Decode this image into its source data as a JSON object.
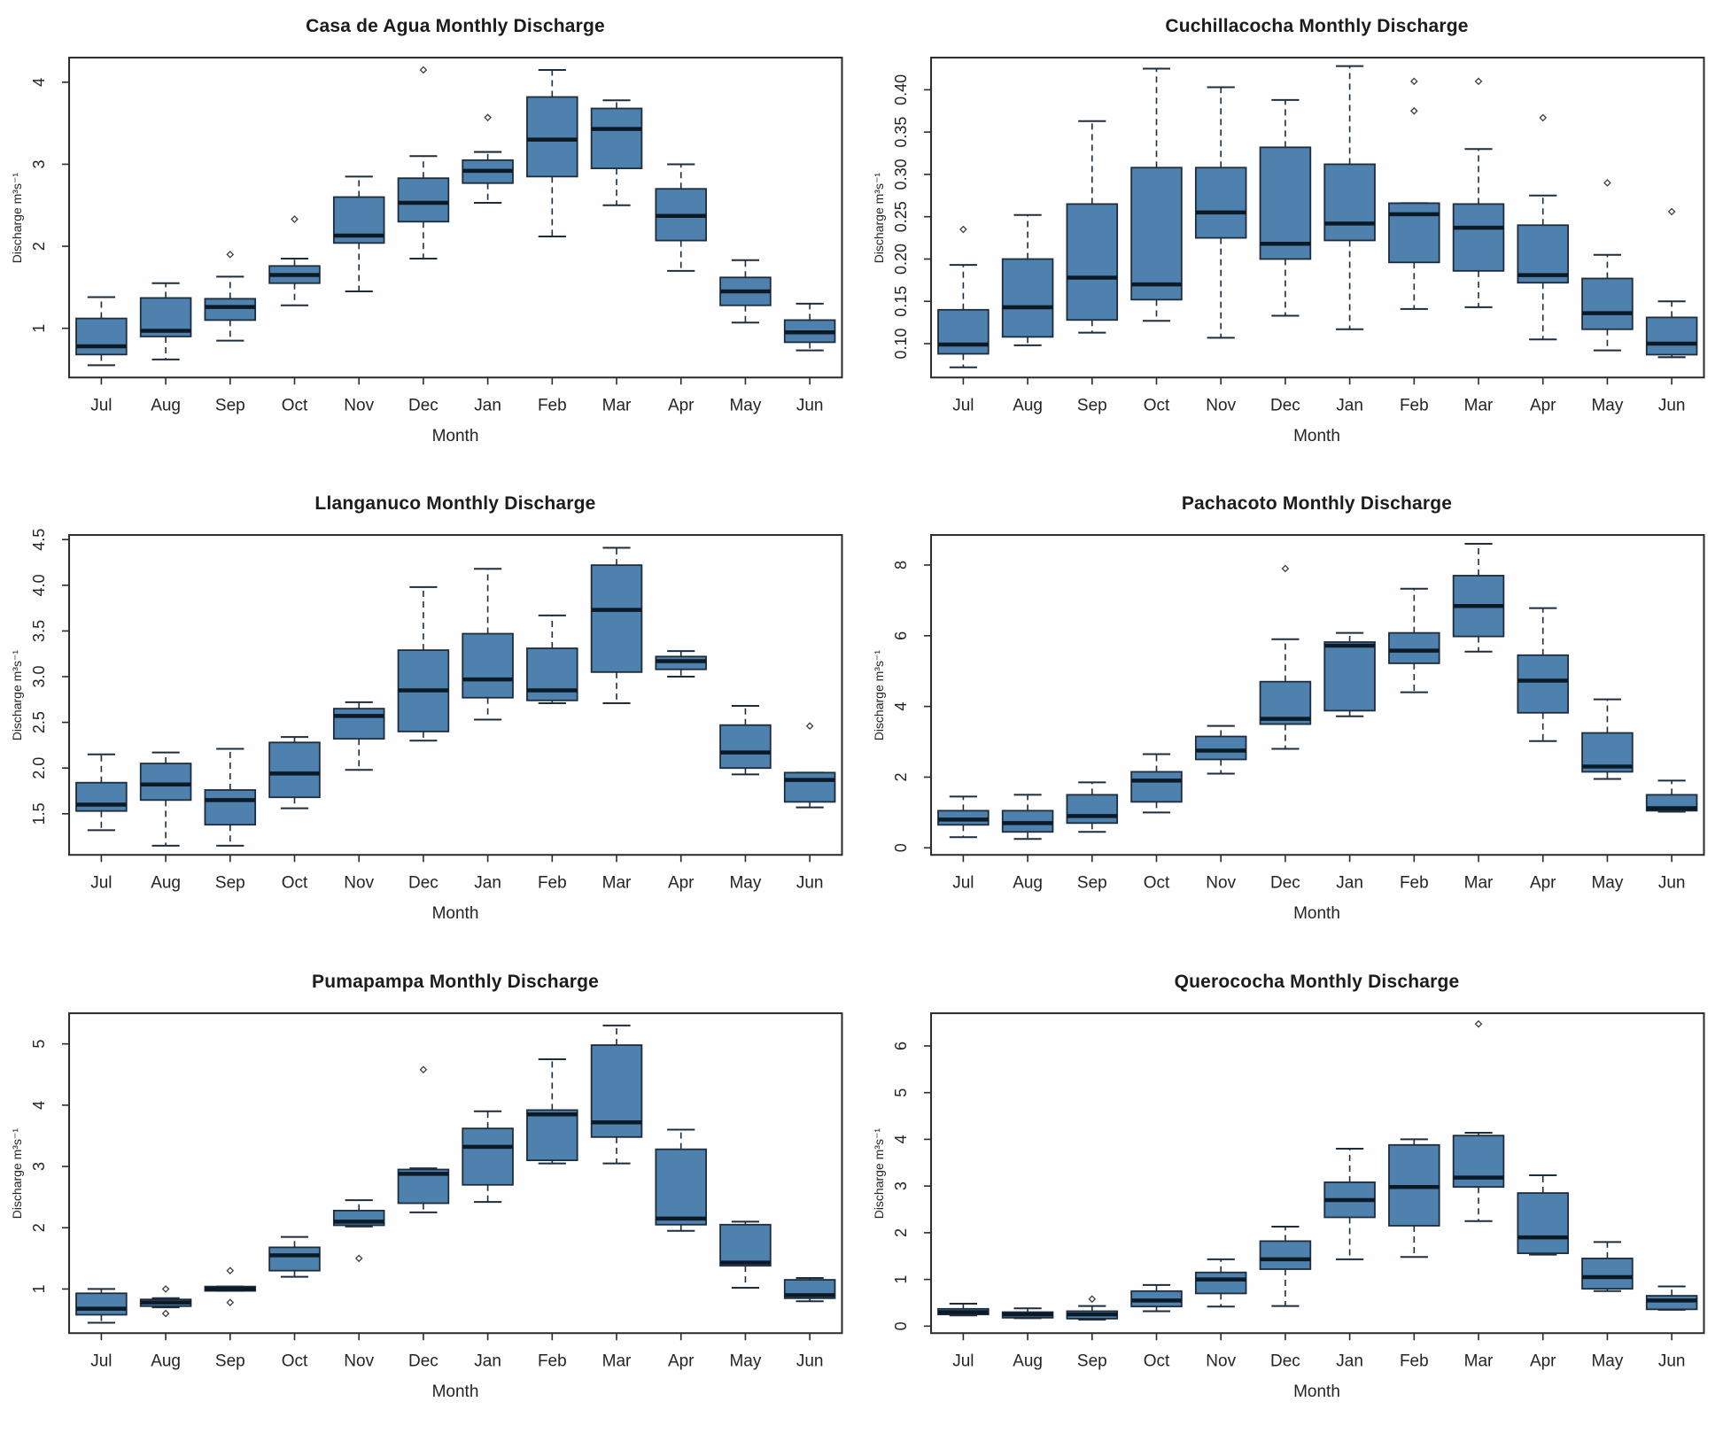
{
  "page": {
    "background": "#fefefe"
  },
  "style": {
    "box_fill": "#4e81ad",
    "box_stroke": "#1e2d3c",
    "median_color": "#0c1a26",
    "whisker_color": "#1e2d3c",
    "outlier_color": "#3d3d3d",
    "frame_color": "#2a2a2a",
    "text_color": "#1f1f1f"
  },
  "chart_data": [
    {
      "type": "box",
      "title": "Casa de Agua Monthly Discharge",
      "xlabel": "Month",
      "ylabel": "Discharge m³s⁻¹",
      "categories": [
        "Jul",
        "Aug",
        "Sep",
        "Oct",
        "Nov",
        "Dec",
        "Jan",
        "Feb",
        "Mar",
        "Apr",
        "May",
        "Jun"
      ],
      "ylim": [
        0.4,
        4.3
      ],
      "yticks": [
        {
          "value": 1,
          "label": "1"
        },
        {
          "value": 2,
          "label": "2"
        },
        {
          "value": 3,
          "label": "3"
        },
        {
          "value": 4,
          "label": "4"
        }
      ],
      "boxes": [
        {
          "low": 0.55,
          "q1": 0.68,
          "median": 0.78,
          "q3": 1.12,
          "high": 1.38,
          "outliers": []
        },
        {
          "low": 0.62,
          "q1": 0.9,
          "median": 0.97,
          "q3": 1.37,
          "high": 1.55,
          "outliers": []
        },
        {
          "low": 0.85,
          "q1": 1.1,
          "median": 1.26,
          "q3": 1.36,
          "high": 1.63,
          "outliers": [
            1.9
          ]
        },
        {
          "low": 1.28,
          "q1": 1.55,
          "median": 1.65,
          "q3": 1.76,
          "high": 1.85,
          "outliers": [
            2.33
          ]
        },
        {
          "low": 1.45,
          "q1": 2.04,
          "median": 2.13,
          "q3": 2.6,
          "high": 2.85,
          "outliers": []
        },
        {
          "low": 1.85,
          "q1": 2.3,
          "median": 2.53,
          "q3": 2.83,
          "high": 3.1,
          "outliers": [
            4.15
          ]
        },
        {
          "low": 2.53,
          "q1": 2.77,
          "median": 2.92,
          "q3": 3.05,
          "high": 3.15,
          "outliers": [
            3.57
          ]
        },
        {
          "low": 2.12,
          "q1": 2.85,
          "median": 3.3,
          "q3": 3.82,
          "high": 4.15,
          "outliers": []
        },
        {
          "low": 2.5,
          "q1": 2.95,
          "median": 3.43,
          "q3": 3.68,
          "high": 3.78,
          "outliers": []
        },
        {
          "low": 1.7,
          "q1": 2.07,
          "median": 2.37,
          "q3": 2.7,
          "high": 3.0,
          "outliers": []
        },
        {
          "low": 1.07,
          "q1": 1.28,
          "median": 1.45,
          "q3": 1.62,
          "high": 1.83,
          "outliers": []
        },
        {
          "low": 0.73,
          "q1": 0.83,
          "median": 0.95,
          "q3": 1.1,
          "high": 1.3,
          "outliers": []
        }
      ]
    },
    {
      "type": "box",
      "title": "Cuchillacocha Monthly Discharge",
      "xlabel": "Month",
      "ylabel": "Discharge m³s⁻¹",
      "categories": [
        "Jul",
        "Aug",
        "Sep",
        "Oct",
        "Nov",
        "Dec",
        "Jan",
        "Feb",
        "Mar",
        "Apr",
        "May",
        "Jun"
      ],
      "ylim": [
        0.06,
        0.438
      ],
      "yticks": [
        {
          "value": 0.1,
          "label": "0.10"
        },
        {
          "value": 0.15,
          "label": "0.15"
        },
        {
          "value": 0.2,
          "label": "0.20"
        },
        {
          "value": 0.25,
          "label": "0.25"
        },
        {
          "value": 0.3,
          "label": "0.30"
        },
        {
          "value": 0.35,
          "label": "0.35"
        },
        {
          "value": 0.4,
          "label": "0.40"
        }
      ],
      "boxes": [
        {
          "low": 0.072,
          "q1": 0.088,
          "median": 0.099,
          "q3": 0.14,
          "high": 0.193,
          "outliers": [
            0.235
          ]
        },
        {
          "low": 0.098,
          "q1": 0.108,
          "median": 0.143,
          "q3": 0.2,
          "high": 0.252,
          "outliers": []
        },
        {
          "low": 0.113,
          "q1": 0.128,
          "median": 0.178,
          "q3": 0.265,
          "high": 0.363,
          "outliers": []
        },
        {
          "low": 0.127,
          "q1": 0.152,
          "median": 0.17,
          "q3": 0.308,
          "high": 0.425,
          "outliers": []
        },
        {
          "low": 0.107,
          "q1": 0.225,
          "median": 0.255,
          "q3": 0.308,
          "high": 0.403,
          "outliers": []
        },
        {
          "low": 0.133,
          "q1": 0.2,
          "median": 0.218,
          "q3": 0.332,
          "high": 0.388,
          "outliers": []
        },
        {
          "low": 0.117,
          "q1": 0.222,
          "median": 0.242,
          "q3": 0.312,
          "high": 0.428,
          "outliers": []
        },
        {
          "low": 0.141,
          "q1": 0.196,
          "median": 0.253,
          "q3": 0.266,
          "high": 0.266,
          "outliers": [
            0.375,
            0.41
          ]
        },
        {
          "low": 0.143,
          "q1": 0.186,
          "median": 0.237,
          "q3": 0.265,
          "high": 0.33,
          "outliers": [
            0.41
          ]
        },
        {
          "low": 0.105,
          "q1": 0.172,
          "median": 0.181,
          "q3": 0.24,
          "high": 0.275,
          "outliers": [
            0.367
          ]
        },
        {
          "low": 0.092,
          "q1": 0.117,
          "median": 0.136,
          "q3": 0.177,
          "high": 0.205,
          "outliers": [
            0.29
          ]
        },
        {
          "low": 0.084,
          "q1": 0.087,
          "median": 0.1,
          "q3": 0.131,
          "high": 0.15,
          "outliers": [
            0.256
          ]
        }
      ]
    },
    {
      "type": "box",
      "title": "Llanganuco Monthly Discharge",
      "xlabel": "Month",
      "ylabel": "Discharge m³s⁻¹",
      "categories": [
        "Jul",
        "Aug",
        "Sep",
        "Oct",
        "Nov",
        "Dec",
        "Jan",
        "Feb",
        "Mar",
        "Apr",
        "May",
        "Jun"
      ],
      "ylim": [
        1.05,
        4.55
      ],
      "yticks": [
        {
          "value": 1.5,
          "label": "1.5"
        },
        {
          "value": 2.0,
          "label": "2.0"
        },
        {
          "value": 2.5,
          "label": "2.5"
        },
        {
          "value": 3.0,
          "label": "3.0"
        },
        {
          "value": 3.5,
          "label": "3.5"
        },
        {
          "value": 4.0,
          "label": "4.0"
        },
        {
          "value": 4.5,
          "label": "4.5"
        }
      ],
      "boxes": [
        {
          "low": 1.32,
          "q1": 1.53,
          "median": 1.6,
          "q3": 1.84,
          "high": 2.15,
          "outliers": []
        },
        {
          "low": 1.15,
          "q1": 1.65,
          "median": 1.82,
          "q3": 2.05,
          "high": 2.17,
          "outliers": []
        },
        {
          "low": 1.15,
          "q1": 1.38,
          "median": 1.65,
          "q3": 1.76,
          "high": 2.21,
          "outliers": []
        },
        {
          "low": 1.56,
          "q1": 1.68,
          "median": 1.94,
          "q3": 2.28,
          "high": 2.34,
          "outliers": []
        },
        {
          "low": 1.98,
          "q1": 2.32,
          "median": 2.57,
          "q3": 2.65,
          "high": 2.72,
          "outliers": []
        },
        {
          "low": 2.3,
          "q1": 2.4,
          "median": 2.85,
          "q3": 3.29,
          "high": 3.98,
          "outliers": []
        },
        {
          "low": 2.53,
          "q1": 2.77,
          "median": 2.97,
          "q3": 3.47,
          "high": 4.18,
          "outliers": []
        },
        {
          "low": 2.71,
          "q1": 2.74,
          "median": 2.85,
          "q3": 3.31,
          "high": 3.67,
          "outliers": []
        },
        {
          "low": 2.71,
          "q1": 3.05,
          "median": 3.73,
          "q3": 4.22,
          "high": 4.41,
          "outliers": []
        },
        {
          "low": 3.0,
          "q1": 3.08,
          "median": 3.17,
          "q3": 3.22,
          "high": 3.28,
          "outliers": []
        },
        {
          "low": 1.93,
          "q1": 2.0,
          "median": 2.17,
          "q3": 2.47,
          "high": 2.68,
          "outliers": []
        },
        {
          "low": 1.57,
          "q1": 1.63,
          "median": 1.87,
          "q3": 1.95,
          "high": 1.95,
          "outliers": [
            2.46
          ]
        }
      ]
    },
    {
      "type": "box",
      "title": "Pachacoto Monthly Discharge",
      "xlabel": "Month",
      "ylabel": "Discharge m³s⁻¹",
      "categories": [
        "Jul",
        "Aug",
        "Sep",
        "Oct",
        "Nov",
        "Dec",
        "Jan",
        "Feb",
        "Mar",
        "Apr",
        "May",
        "Jun"
      ],
      "ylim": [
        -0.2,
        8.85
      ],
      "yticks": [
        {
          "value": 0,
          "label": "0"
        },
        {
          "value": 2,
          "label": "2"
        },
        {
          "value": 4,
          "label": "4"
        },
        {
          "value": 6,
          "label": "6"
        },
        {
          "value": 8,
          "label": "8"
        }
      ],
      "boxes": [
        {
          "low": 0.3,
          "q1": 0.65,
          "median": 0.8,
          "q3": 1.05,
          "high": 1.45,
          "outliers": []
        },
        {
          "low": 0.25,
          "q1": 0.45,
          "median": 0.7,
          "q3": 1.05,
          "high": 1.5,
          "outliers": []
        },
        {
          "low": 0.45,
          "q1": 0.7,
          "median": 0.9,
          "q3": 1.5,
          "high": 1.85,
          "outliers": []
        },
        {
          "low": 1.0,
          "q1": 1.3,
          "median": 1.9,
          "q3": 2.15,
          "high": 2.65,
          "outliers": []
        },
        {
          "low": 2.1,
          "q1": 2.5,
          "median": 2.75,
          "q3": 3.15,
          "high": 3.45,
          "outliers": []
        },
        {
          "low": 2.8,
          "q1": 3.5,
          "median": 3.65,
          "q3": 4.7,
          "high": 5.9,
          "outliers": [
            7.9
          ]
        },
        {
          "low": 3.72,
          "q1": 3.88,
          "median": 5.72,
          "q3": 5.82,
          "high": 6.08,
          "outliers": []
        },
        {
          "low": 4.4,
          "q1": 5.22,
          "median": 5.58,
          "q3": 6.08,
          "high": 7.33,
          "outliers": []
        },
        {
          "low": 5.55,
          "q1": 5.98,
          "median": 6.84,
          "q3": 7.7,
          "high": 8.6,
          "outliers": []
        },
        {
          "low": 3.02,
          "q1": 3.82,
          "median": 4.73,
          "q3": 5.45,
          "high": 6.78,
          "outliers": []
        },
        {
          "low": 1.95,
          "q1": 2.15,
          "median": 2.3,
          "q3": 3.25,
          "high": 4.2,
          "outliers": []
        },
        {
          "low": 1.02,
          "q1": 1.05,
          "median": 1.12,
          "q3": 1.5,
          "high": 1.9,
          "outliers": []
        }
      ]
    },
    {
      "type": "box",
      "title": "Pumapampa Monthly Discharge",
      "xlabel": "Month",
      "ylabel": "Discharge m³s⁻¹",
      "categories": [
        "Jul",
        "Aug",
        "Sep",
        "Oct",
        "Nov",
        "Dec",
        "Jan",
        "Feb",
        "Mar",
        "Apr",
        "May",
        "Jun"
      ],
      "ylim": [
        0.28,
        5.5
      ],
      "yticks": [
        {
          "value": 1,
          "label": "1"
        },
        {
          "value": 2,
          "label": "2"
        },
        {
          "value": 3,
          "label": "3"
        },
        {
          "value": 4,
          "label": "4"
        },
        {
          "value": 5,
          "label": "5"
        }
      ],
      "boxes": [
        {
          "low": 0.45,
          "q1": 0.58,
          "median": 0.68,
          "q3": 0.93,
          "high": 1.0,
          "outliers": []
        },
        {
          "low": 0.7,
          "q1": 0.72,
          "median": 0.78,
          "q3": 0.83,
          "high": 0.85,
          "outliers": [
            1.0,
            0.6
          ]
        },
        {
          "low": 0.97,
          "q1": 0.97,
          "median": 1.0,
          "q3": 1.04,
          "high": 1.04,
          "outliers": [
            1.3,
            0.78
          ]
        },
        {
          "low": 1.2,
          "q1": 1.3,
          "median": 1.55,
          "q3": 1.68,
          "high": 1.85,
          "outliers": []
        },
        {
          "low": 2.02,
          "q1": 2.04,
          "median": 2.1,
          "q3": 2.28,
          "high": 2.45,
          "outliers": [
            1.5
          ]
        },
        {
          "low": 2.25,
          "q1": 2.4,
          "median": 2.88,
          "q3": 2.95,
          "high": 2.97,
          "outliers": [
            4.58
          ]
        },
        {
          "low": 2.42,
          "q1": 2.7,
          "median": 3.32,
          "q3": 3.62,
          "high": 3.9,
          "outliers": []
        },
        {
          "low": 3.05,
          "q1": 3.1,
          "median": 3.85,
          "q3": 3.92,
          "high": 4.75,
          "outliers": []
        },
        {
          "low": 3.05,
          "q1": 3.48,
          "median": 3.72,
          "q3": 4.98,
          "high": 5.3,
          "outliers": []
        },
        {
          "low": 1.95,
          "q1": 2.05,
          "median": 2.15,
          "q3": 3.28,
          "high": 3.6,
          "outliers": []
        },
        {
          "low": 1.02,
          "q1": 1.38,
          "median": 1.43,
          "q3": 2.05,
          "high": 2.1,
          "outliers": []
        },
        {
          "low": 0.8,
          "q1": 0.85,
          "median": 0.9,
          "q3": 1.15,
          "high": 1.18,
          "outliers": []
        }
      ]
    },
    {
      "type": "box",
      "title": "Querococha Monthly Discharge",
      "xlabel": "Month",
      "ylabel": "Discharge m³s⁻¹",
      "categories": [
        "Jul",
        "Aug",
        "Sep",
        "Oct",
        "Nov",
        "Dec",
        "Jan",
        "Feb",
        "Mar",
        "Apr",
        "May",
        "Jun"
      ],
      "ylim": [
        -0.15,
        6.7
      ],
      "yticks": [
        {
          "value": 0,
          "label": "0"
        },
        {
          "value": 1,
          "label": "1"
        },
        {
          "value": 2,
          "label": "2"
        },
        {
          "value": 3,
          "label": "3"
        },
        {
          "value": 4,
          "label": "4"
        },
        {
          "value": 5,
          "label": "5"
        },
        {
          "value": 6,
          "label": "6"
        }
      ],
      "boxes": [
        {
          "low": 0.23,
          "q1": 0.25,
          "median": 0.3,
          "q3": 0.37,
          "high": 0.48,
          "outliers": []
        },
        {
          "low": 0.17,
          "q1": 0.18,
          "median": 0.25,
          "q3": 0.3,
          "high": 0.38,
          "outliers": []
        },
        {
          "low": 0.14,
          "q1": 0.16,
          "median": 0.25,
          "q3": 0.32,
          "high": 0.43,
          "outliers": [
            0.58
          ]
        },
        {
          "low": 0.32,
          "q1": 0.42,
          "median": 0.55,
          "q3": 0.75,
          "high": 0.88,
          "outliers": []
        },
        {
          "low": 0.42,
          "q1": 0.7,
          "median": 1.0,
          "q3": 1.15,
          "high": 1.43,
          "outliers": []
        },
        {
          "low": 0.43,
          "q1": 1.22,
          "median": 1.43,
          "q3": 1.82,
          "high": 2.13,
          "outliers": []
        },
        {
          "low": 1.43,
          "q1": 2.33,
          "median": 2.7,
          "q3": 3.08,
          "high": 3.8,
          "outliers": []
        },
        {
          "low": 1.48,
          "q1": 2.15,
          "median": 2.98,
          "q3": 3.88,
          "high": 4.0,
          "outliers": []
        },
        {
          "low": 2.25,
          "q1": 2.98,
          "median": 3.18,
          "q3": 4.08,
          "high": 4.14,
          "outliers": [
            6.47
          ]
        },
        {
          "low": 1.53,
          "q1": 1.56,
          "median": 1.9,
          "q3": 2.85,
          "high": 3.23,
          "outliers": []
        },
        {
          "low": 0.75,
          "q1": 0.8,
          "median": 1.05,
          "q3": 1.45,
          "high": 1.8,
          "outliers": []
        },
        {
          "low": 0.35,
          "q1": 0.36,
          "median": 0.55,
          "q3": 0.65,
          "high": 0.85,
          "outliers": []
        }
      ]
    }
  ]
}
